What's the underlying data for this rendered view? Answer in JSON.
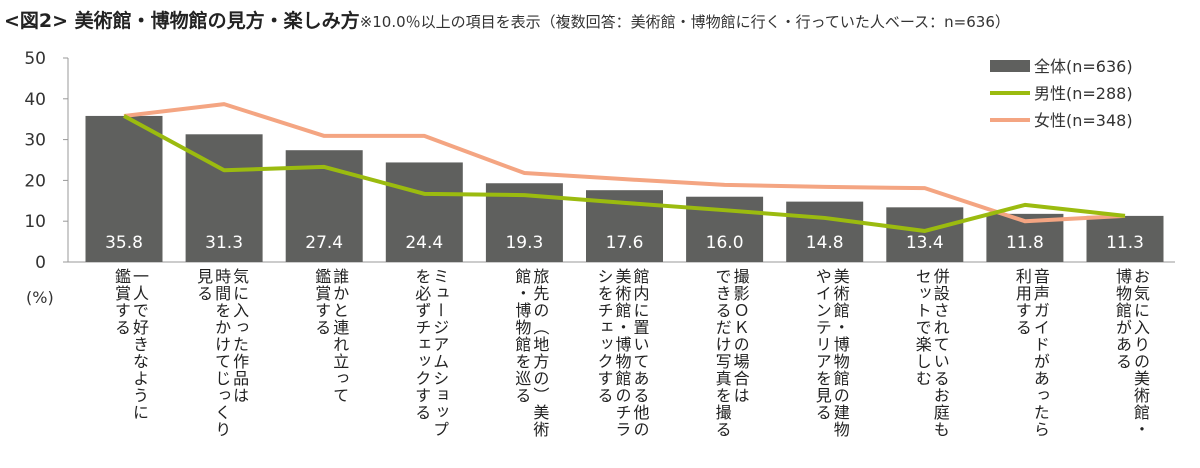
{
  "title": {
    "main": "<図2> 美術館・博物館の見方・楽しみ方",
    "note": "※10.0％以上の項目を表示（複数回答：美術館・博物館に行く・行っていた人ベース：n=636）"
  },
  "colors": {
    "bar": "#5f605e",
    "male": "#9bbb0f",
    "female": "#f4a582"
  },
  "chart_data": {
    "type": "bar+line",
    "ylabel": "(%)",
    "ylim": [
      0,
      50
    ],
    "yticks": [
      0,
      10,
      20,
      30,
      40,
      50
    ],
    "legend_position": "top-right",
    "categories": [
      "一人で好きなように\n鑑賞する",
      "気に入った作品は\n時間をかけてじっくり\n見る",
      "誰かと連れ立って\n鑑賞する",
      "ミュージアムショップ\nを必ずチェックする",
      "旅先の（地方の）美術\n館・博物館を巡る",
      "館内に置いてある他の\n美術館・博物館のチラ\nシをチェックする",
      "撮影ＯＫの場合は\nできるだけ写真を撮る",
      "美術館・博物館の建物\nやインテリアを見る",
      "併設されているお庭も\nセットで楽しむ",
      "音声ガイドがあったら\n利用する",
      "お気に入りの美術館・\n博物館がある"
    ],
    "series": [
      {
        "name": "全体(n=636)",
        "type": "bar",
        "values": [
          35.8,
          31.3,
          27.4,
          24.4,
          19.3,
          17.6,
          16.0,
          14.8,
          13.4,
          11.8,
          11.3
        ]
      },
      {
        "name": "男性(n=288)",
        "type": "line",
        "values": [
          35.8,
          22.5,
          23.3,
          16.7,
          16.4,
          14.5,
          12.7,
          10.8,
          7.6,
          14.0,
          11.3
        ]
      },
      {
        "name": "女性(n=348)",
        "type": "line",
        "values": [
          35.8,
          38.7,
          30.9,
          30.9,
          21.8,
          20.3,
          18.9,
          18.4,
          18.1,
          10.0,
          11.3
        ]
      }
    ],
    "value_labels": [
      "35.8",
      "31.3",
      "27.4",
      "24.4",
      "19.3",
      "17.6",
      "16.0",
      "14.8",
      "13.4",
      "11.8",
      "11.3"
    ]
  }
}
